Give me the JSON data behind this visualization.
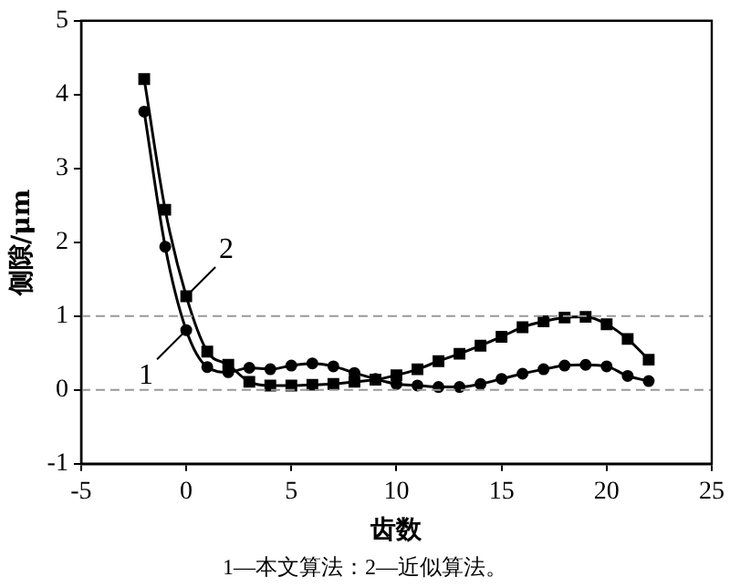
{
  "chart_data": {
    "type": "line",
    "xlabel": "齿数",
    "ylabel": "侧隙/μm",
    "x": [
      -2,
      -1,
      0,
      1,
      2,
      3,
      4,
      5,
      6,
      7,
      8,
      9,
      10,
      11,
      12,
      13,
      14,
      15,
      16,
      17,
      18,
      19,
      20,
      21,
      22
    ],
    "series": [
      {
        "color": "#000000",
        "marker": "circle",
        "values": [
          3.77,
          1.94,
          0.81,
          0.31,
          0.24,
          0.3,
          0.28,
          0.33,
          0.36,
          0.32,
          0.23,
          0.15,
          0.08,
          0.06,
          0.04,
          0.04,
          0.08,
          0.15,
          0.22,
          0.28,
          0.33,
          0.34,
          0.32,
          0.19,
          0.12
        ]
      },
      {
        "color": "#000000",
        "marker": "square",
        "values": [
          4.21,
          2.44,
          1.27,
          0.52,
          0.34,
          0.11,
          0.06,
          0.06,
          0.07,
          0.08,
          0.11,
          0.14,
          0.2,
          0.28,
          0.39,
          0.49,
          0.6,
          0.72,
          0.85,
          0.93,
          0.98,
          0.99,
          0.89,
          0.69,
          0.41
        ]
      }
    ],
    "xlim": [
      -5,
      25
    ],
    "xticks": [
      -5,
      0,
      5,
      10,
      15,
      20,
      25
    ],
    "ylim": [
      -1,
      5
    ],
    "yticks": [
      -1,
      0,
      1,
      2,
      3,
      4,
      5
    ],
    "grid": false,
    "legend": false,
    "line_style": "solid",
    "ref_lines": [
      {
        "axis": "y",
        "value": 0,
        "color": "#999999",
        "line_style": "dashed"
      },
      {
        "axis": "y",
        "value": 1,
        "color": "#999999",
        "line_style": "dashed"
      }
    ],
    "annotations": [
      {
        "text": "1",
        "x": 0,
        "y": 0.81
      },
      {
        "text": "2",
        "x": 0,
        "y": 1.27
      },
      "1—本文算法：2—近似算法。"
    ]
  }
}
